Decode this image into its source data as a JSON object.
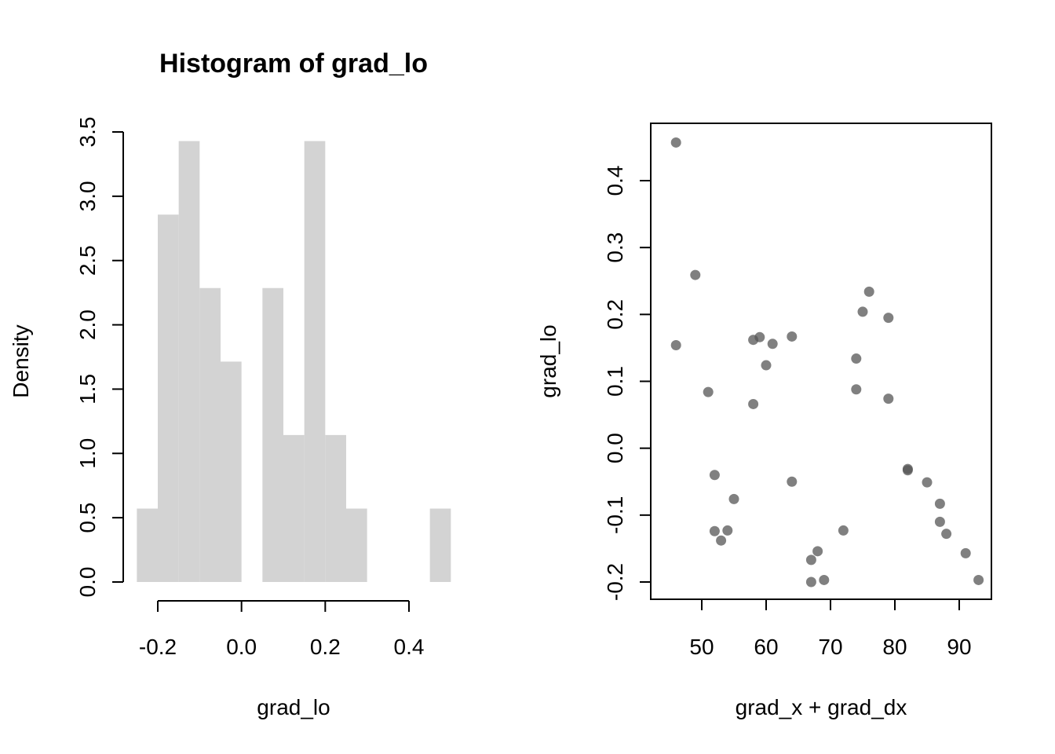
{
  "chart_data": [
    {
      "type": "histogram",
      "title": "Histogram of grad_lo",
      "xlabel": "grad_lo",
      "ylabel": "Density",
      "xlim": [
        -0.25,
        0.5
      ],
      "ylim": [
        0,
        3.5
      ],
      "x_ticks": [
        -0.2,
        0.0,
        0.2,
        0.4
      ],
      "x_tick_labels": [
        "-0.2",
        "0.0",
        "0.2",
        "0.4"
      ],
      "y_ticks": [
        0,
        0.5,
        1,
        1.5,
        2,
        2.5,
        3,
        3.5
      ],
      "y_tick_labels": [
        "0.0",
        "0.5",
        "1.0",
        "1.5",
        "2.0",
        "2.5",
        "3.0",
        "3.5"
      ],
      "bar_color": "#d3d3d3",
      "bins": [
        {
          "x0": -0.25,
          "x1": -0.2,
          "density": 0.571
        },
        {
          "x0": -0.2,
          "x1": -0.15,
          "density": 2.857
        },
        {
          "x0": -0.15,
          "x1": -0.1,
          "density": 3.429
        },
        {
          "x0": -0.1,
          "x1": -0.05,
          "density": 2.286
        },
        {
          "x0": -0.05,
          "x1": 0.0,
          "density": 1.714
        },
        {
          "x0": 0.0,
          "x1": 0.05,
          "density": 0
        },
        {
          "x0": 0.05,
          "x1": 0.1,
          "density": 2.286
        },
        {
          "x0": 0.1,
          "x1": 0.15,
          "density": 1.143
        },
        {
          "x0": 0.15,
          "x1": 0.2,
          "density": 3.429
        },
        {
          "x0": 0.2,
          "x1": 0.25,
          "density": 1.143
        },
        {
          "x0": 0.25,
          "x1": 0.3,
          "density": 0.571
        },
        {
          "x0": 0.3,
          "x1": 0.35,
          "density": 0
        },
        {
          "x0": 0.35,
          "x1": 0.4,
          "density": 0
        },
        {
          "x0": 0.4,
          "x1": 0.45,
          "density": 0
        },
        {
          "x0": 0.45,
          "x1": 0.5,
          "density": 0.571
        }
      ]
    },
    {
      "type": "scatter",
      "title": "",
      "xlabel": "grad_x + grad_dx",
      "ylabel": "grad_lo",
      "xlim": [
        42.8,
        95.2
      ],
      "ylim": [
        -0.225,
        0.4825
      ],
      "x_ticks": [
        50,
        60,
        70,
        80,
        90
      ],
      "x_tick_labels": [
        "50",
        "60",
        "70",
        "80",
        "90"
      ],
      "y_ticks": [
        -0.2,
        -0.1,
        0.0,
        0.1,
        0.2,
        0.3,
        0.4
      ],
      "y_tick_labels": [
        "-0.2",
        "-0.1",
        "0.0",
        "0.1",
        "0.2",
        "0.3",
        "0.4"
      ],
      "point_color": "#555555",
      "point_opacity": 0.75,
      "box": true,
      "points": [
        {
          "x": 46,
          "y": 0.457
        },
        {
          "x": 46,
          "y": 0.154
        },
        {
          "x": 49,
          "y": 0.259
        },
        {
          "x": 51,
          "y": 0.084
        },
        {
          "x": 52,
          "y": -0.04
        },
        {
          "x": 52,
          "y": -0.124
        },
        {
          "x": 53,
          "y": -0.138
        },
        {
          "x": 54,
          "y": -0.123
        },
        {
          "x": 55,
          "y": -0.076
        },
        {
          "x": 58,
          "y": 0.162
        },
        {
          "x": 58,
          "y": 0.066
        },
        {
          "x": 59,
          "y": 0.166
        },
        {
          "x": 60,
          "y": 0.124
        },
        {
          "x": 61,
          "y": 0.156
        },
        {
          "x": 64,
          "y": 0.167
        },
        {
          "x": 64,
          "y": -0.05
        },
        {
          "x": 67,
          "y": -0.167
        },
        {
          "x": 67,
          "y": -0.2
        },
        {
          "x": 68,
          "y": -0.154
        },
        {
          "x": 69,
          "y": -0.197
        },
        {
          "x": 72,
          "y": -0.123
        },
        {
          "x": 74,
          "y": 0.134
        },
        {
          "x": 74,
          "y": 0.088
        },
        {
          "x": 75,
          "y": 0.204
        },
        {
          "x": 76,
          "y": 0.234
        },
        {
          "x": 79,
          "y": 0.195
        },
        {
          "x": 79,
          "y": 0.074
        },
        {
          "x": 82,
          "y": -0.031
        },
        {
          "x": 82,
          "y": -0.033
        },
        {
          "x": 85,
          "y": -0.051
        },
        {
          "x": 87,
          "y": -0.083
        },
        {
          "x": 87,
          "y": -0.11
        },
        {
          "x": 88,
          "y": -0.128
        },
        {
          "x": 91,
          "y": -0.157
        },
        {
          "x": 93,
          "y": -0.197
        }
      ]
    }
  ]
}
